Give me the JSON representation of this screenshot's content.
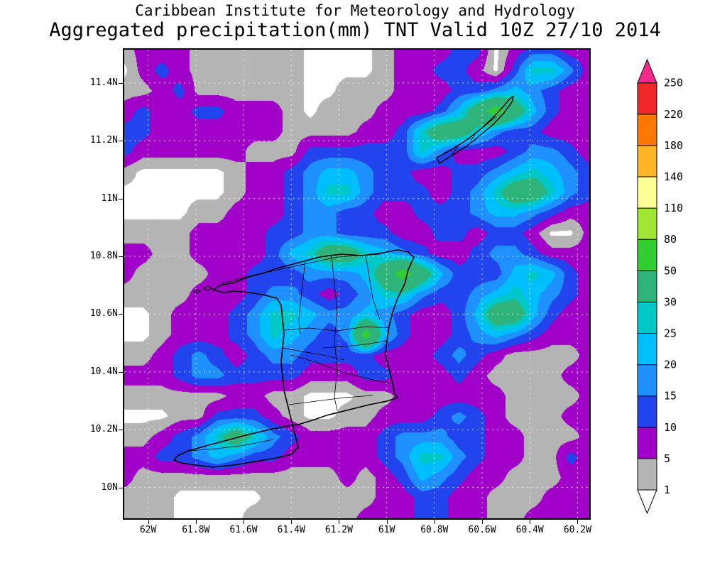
{
  "header": {
    "title_line1": "Caribbean Institute for Meteorology and Hydrology",
    "title_line2": "Aggregated precipitation(mm) TNT Valid 10Z 27/10 2014"
  },
  "axes": {
    "lat_labels": [
      "11.4N",
      "11.2N",
      "11N",
      "10.8N",
      "10.6N",
      "10.4N",
      "10.2N",
      "10N"
    ],
    "lon_labels": [
      "62W",
      "61.8W",
      "61.6W",
      "61.4W",
      "61.2W",
      "61W",
      "60.8W",
      "60.6W",
      "60.4W",
      "60.2W"
    ]
  },
  "colorbar": {
    "tick_labels_bottom_to_top": [
      "1",
      "5",
      "10",
      "15",
      "20",
      "25",
      "30",
      "50",
      "80",
      "110",
      "140",
      "180",
      "220",
      "250"
    ],
    "box_colors_bottom_to_top": [
      "#b4b4b4",
      "#a000c8",
      "#2244ee",
      "#1e90ff",
      "#00bfff",
      "#00c8c8",
      "#2eb47a",
      "#32cd32",
      "#a0e632",
      "#ffff96",
      "#ffb428",
      "#ff7800",
      "#f02828"
    ],
    "under_arrow_color": "#ffffff",
    "over_arrow_color": "#f5288c"
  },
  "chart_data": {
    "type": "heatmap",
    "title": "Aggregated precipitation(mm) TNT Valid 10Z 27/10 2014",
    "source_header": "Caribbean Institute for Meteorology and Hydrology",
    "units": "mm",
    "region": "TNT",
    "valid_time": "10Z 27/10 2014",
    "legend_position": "right",
    "grid_lines": "dotted-white",
    "lon_range_deg_west": [
      62.1,
      60.15
    ],
    "lat_range_deg_north": [
      9.89,
      11.52
    ],
    "levels": [
      1,
      5,
      10,
      15,
      20,
      25,
      30,
      50,
      80,
      110,
      140,
      180,
      220,
      250
    ],
    "level_colors": [
      "#ffffff",
      "#b4b4b4",
      "#a000c8",
      "#2244ee",
      "#1e90ff",
      "#00bfff",
      "#00c8c8",
      "#2eb47a",
      "#32cd32",
      "#a0e632",
      "#ffff96",
      "#ffb428",
      "#ff7800",
      "#f02828",
      "#f5288c"
    ],
    "grid": {
      "rows": 24,
      "cols": 26,
      "values": [
        [
          3,
          7,
          7,
          7,
          3,
          3,
          3,
          3,
          3,
          3,
          0,
          0,
          0,
          0,
          3,
          7,
          7,
          7,
          12,
          12,
          0,
          7,
          12,
          12,
          7,
          7
        ],
        [
          0,
          7,
          12,
          7,
          3,
          3,
          3,
          3,
          3,
          3,
          0,
          0,
          0,
          0,
          3,
          7,
          7,
          12,
          12,
          7,
          0,
          12,
          27,
          27,
          17,
          7
        ],
        [
          3,
          3,
          7,
          12,
          3,
          3,
          3,
          3,
          3,
          3,
          0,
          0,
          3,
          3,
          3,
          7,
          7,
          7,
          12,
          12,
          17,
          22,
          17,
          12,
          7,
          7
        ],
        [
          7,
          12,
          7,
          7,
          12,
          12,
          7,
          7,
          7,
          3,
          0,
          3,
          3,
          3,
          7,
          7,
          7,
          12,
          22,
          40,
          60,
          40,
          22,
          12,
          7,
          7
        ],
        [
          12,
          12,
          7,
          7,
          7,
          7,
          7,
          7,
          7,
          3,
          3,
          3,
          3,
          7,
          7,
          12,
          27,
          40,
          40,
          27,
          17,
          12,
          12,
          7,
          7,
          7
        ],
        [
          12,
          7,
          7,
          7,
          7,
          7,
          7,
          3,
          3,
          3,
          12,
          12,
          12,
          12,
          12,
          12,
          27,
          17,
          7,
          7,
          7,
          12,
          17,
          17,
          12,
          7
        ],
        [
          3,
          0,
          0,
          0,
          0,
          0,
          3,
          7,
          7,
          12,
          17,
          22,
          22,
          17,
          12,
          12,
          7,
          7,
          12,
          12,
          17,
          22,
          27,
          22,
          17,
          12
        ],
        [
          0,
          0,
          0,
          0,
          0,
          0,
          3,
          7,
          7,
          12,
          17,
          27,
          27,
          17,
          12,
          12,
          12,
          7,
          12,
          17,
          27,
          40,
          40,
          27,
          17,
          12
        ],
        [
          0,
          0,
          0,
          0,
          3,
          3,
          7,
          7,
          7,
          12,
          17,
          17,
          12,
          12,
          7,
          7,
          12,
          12,
          12,
          17,
          22,
          22,
          17,
          12,
          7,
          7
        ],
        [
          3,
          3,
          3,
          3,
          7,
          7,
          7,
          7,
          12,
          12,
          17,
          17,
          12,
          12,
          12,
          7,
          7,
          12,
          12,
          7,
          12,
          12,
          7,
          0,
          0,
          7
        ],
        [
          7,
          7,
          3,
          3,
          7,
          7,
          7,
          7,
          12,
          22,
          27,
          40,
          40,
          27,
          22,
          17,
          12,
          7,
          7,
          12,
          17,
          17,
          12,
          7,
          7,
          7
        ],
        [
          7,
          3,
          3,
          3,
          3,
          7,
          7,
          12,
          12,
          12,
          17,
          17,
          17,
          22,
          40,
          60,
          40,
          22,
          12,
          12,
          12,
          22,
          27,
          22,
          12,
          7
        ],
        [
          3,
          3,
          3,
          3,
          7,
          7,
          7,
          12,
          17,
          17,
          12,
          7,
          12,
          17,
          27,
          27,
          17,
          12,
          12,
          17,
          22,
          27,
          22,
          17,
          12,
          7
        ],
        [
          0,
          0,
          3,
          7,
          7,
          7,
          12,
          17,
          27,
          27,
          22,
          17,
          17,
          22,
          17,
          12,
          7,
          7,
          12,
          22,
          40,
          40,
          22,
          12,
          7,
          7
        ],
        [
          0,
          0,
          3,
          7,
          7,
          7,
          12,
          17,
          27,
          22,
          17,
          12,
          17,
          60,
          22,
          12,
          7,
          7,
          12,
          17,
          22,
          17,
          12,
          7,
          7,
          7
        ],
        [
          3,
          3,
          7,
          12,
          17,
          12,
          7,
          12,
          17,
          17,
          12,
          12,
          12,
          12,
          7,
          7,
          7,
          12,
          17,
          12,
          7,
          3,
          3,
          3,
          3,
          7
        ],
        [
          7,
          7,
          7,
          12,
          17,
          17,
          12,
          12,
          12,
          12,
          7,
          7,
          7,
          12,
          12,
          7,
          7,
          7,
          12,
          7,
          3,
          3,
          3,
          3,
          7,
          7
        ],
        [
          3,
          3,
          3,
          3,
          3,
          3,
          7,
          7,
          3,
          3,
          0,
          0,
          0,
          3,
          3,
          7,
          7,
          7,
          7,
          7,
          7,
          3,
          3,
          3,
          3,
          7
        ],
        [
          0,
          0,
          0,
          3,
          3,
          12,
          12,
          12,
          7,
          3,
          0,
          0,
          3,
          3,
          7,
          7,
          7,
          12,
          17,
          12,
          7,
          3,
          3,
          3,
          7,
          7
        ],
        [
          3,
          3,
          7,
          12,
          17,
          27,
          40,
          27,
          17,
          12,
          7,
          7,
          7,
          7,
          12,
          17,
          17,
          17,
          12,
          12,
          7,
          7,
          3,
          3,
          3,
          7
        ],
        [
          7,
          7,
          12,
          12,
          17,
          22,
          17,
          12,
          12,
          7,
          7,
          7,
          7,
          7,
          12,
          17,
          27,
          27,
          17,
          12,
          7,
          7,
          3,
          3,
          12,
          7
        ],
        [
          7,
          3,
          3,
          3,
          3,
          3,
          3,
          3,
          3,
          3,
          3,
          3,
          7,
          3,
          7,
          12,
          22,
          17,
          12,
          7,
          7,
          3,
          3,
          3,
          7,
          7
        ],
        [
          3,
          3,
          3,
          0,
          0,
          0,
          0,
          0,
          3,
          3,
          3,
          3,
          3,
          3,
          7,
          7,
          12,
          12,
          7,
          7,
          3,
          3,
          3,
          7,
          7,
          7
        ],
        [
          3,
          3,
          3,
          0,
          0,
          0,
          0,
          3,
          3,
          3,
          3,
          3,
          3,
          7,
          7,
          7,
          12,
          12,
          7,
          7,
          3,
          3,
          7,
          7,
          7,
          7
        ]
      ]
    }
  }
}
